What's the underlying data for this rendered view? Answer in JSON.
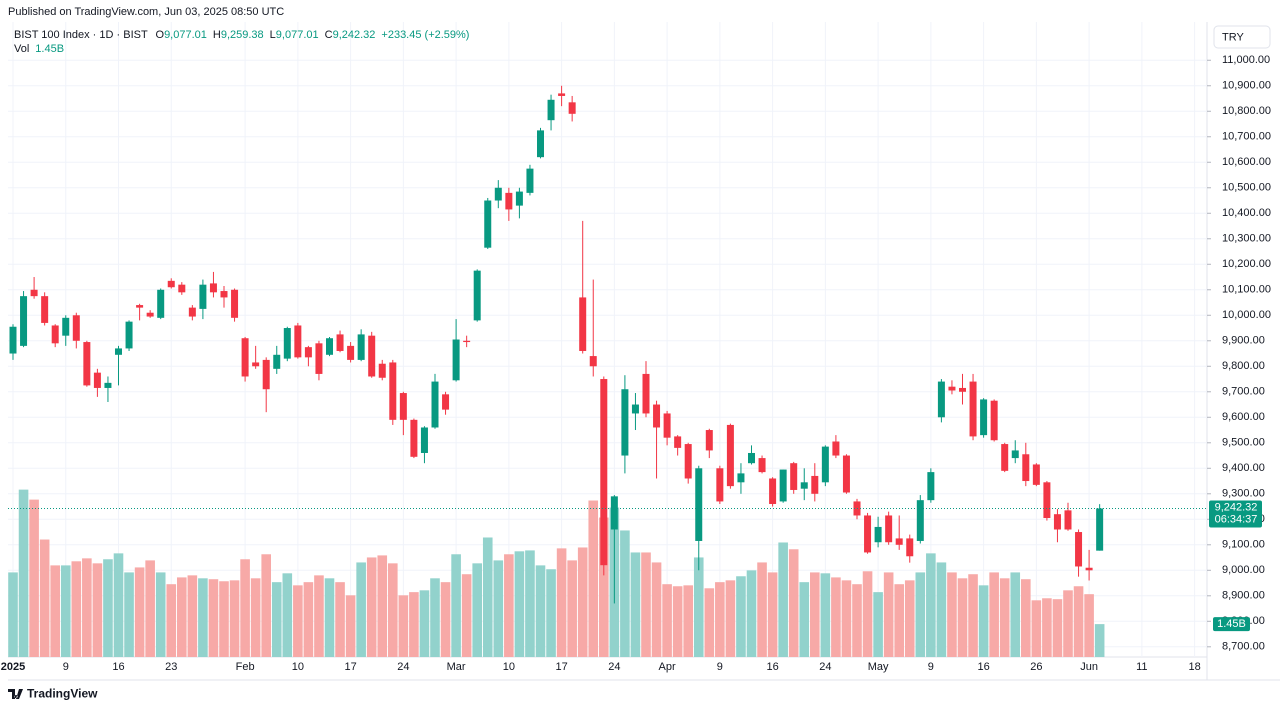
{
  "header": {
    "published": "Published on TradingView.com, Jun 03, 2025 08:50 UTC",
    "footer": "TradingView"
  },
  "chart_data": {
    "type": "candlestick",
    "title": "BIST 100 Index · 1D · BIST",
    "legend_items": [
      {
        "key": "O",
        "value": "9,077.01"
      },
      {
        "key": "H",
        "value": "9,259.38"
      },
      {
        "key": "L",
        "value": "9,077.01"
      },
      {
        "key": "C",
        "value": "9,242.32"
      }
    ],
    "change": "+233.45 (+2.59%)",
    "volume_title": "Vol",
    "volume_legend": "1.45B",
    "currency": "TRY",
    "last_price_label": "9,242.32",
    "countdown": "06:34:37",
    "last_volume_label": "1.45B",
    "categories": [
      "2025",
      null,
      null,
      null,
      null,
      "9",
      null,
      null,
      null,
      null,
      "16",
      null,
      null,
      null,
      null,
      "23",
      null,
      null,
      null,
      null,
      null,
      null,
      "Feb",
      null,
      null,
      null,
      null,
      "10",
      null,
      null,
      null,
      null,
      "17",
      null,
      null,
      null,
      null,
      "24",
      null,
      null,
      null,
      null,
      "Mar",
      null,
      null,
      null,
      null,
      "10",
      null,
      null,
      null,
      null,
      "17",
      null,
      null,
      null,
      null,
      "24",
      null,
      null,
      null,
      null,
      "Apr",
      null,
      null,
      null,
      null,
      "9",
      null,
      null,
      null,
      null,
      "16",
      null,
      null,
      null,
      null,
      "24",
      null,
      null,
      null,
      null,
      "May",
      null,
      null,
      null,
      null,
      "9",
      null,
      null,
      null,
      null,
      "16",
      null,
      null,
      null,
      null,
      "26",
      null,
      null,
      null,
      null,
      "Jun",
      null,
      null,
      null,
      null,
      "11",
      null,
      null,
      null,
      null,
      "18"
    ],
    "open": [
      9850,
      9880,
      10100,
      10075,
      9960,
      9920,
      10000,
      9895,
      9775,
      9715,
      9845,
      9870,
      10040,
      10010,
      9990,
      10135,
      10120,
      10030,
      10025,
      10125,
      10095,
      10100,
      9910,
      9815,
      9825,
      9790,
      9830,
      9960,
      9875,
      9890,
      9845,
      9925,
      9880,
      9825,
      9920,
      9810,
      9815,
      9695,
      9590,
      9460,
      9560,
      9690,
      9745,
      9900,
      9980,
      10265,
      10450,
      10480,
      10430,
      10480,
      10620,
      10765,
      10870,
      10835,
      10070,
      9840,
      9750,
      9160,
      9450,
      9615,
      9770,
      9650,
      9615,
      9525,
      9495,
      9115,
      9550,
      9400,
      9570,
      9345,
      9420,
      9440,
      9360,
      9270,
      9420,
      9320,
      9370,
      9345,
      9505,
      9450,
      9270,
      9215,
      9110,
      9215,
      9125,
      9125,
      9115,
      9275,
      9600,
      9720,
      9715,
      9740,
      9530,
      9665,
      9495,
      9440,
      9455,
      9415,
      9345,
      9220,
      9235,
      9150,
      9010,
      9077.01,
      null,
      null,
      null,
      null,
      null,
      null,
      null,
      null,
      null
    ],
    "high": [
      9965,
      10095,
      10150,
      10090,
      9965,
      10000,
      10010,
      9900,
      9790,
      9760,
      9880,
      9980,
      10045,
      10020,
      10105,
      10145,
      10130,
      10040,
      10140,
      10170,
      10115,
      10105,
      9915,
      9880,
      9835,
      9880,
      9955,
      9970,
      9880,
      9900,
      9915,
      9940,
      9895,
      9945,
      9935,
      9825,
      9825,
      9700,
      9595,
      9565,
      9770,
      9700,
      9985,
      9920,
      10180,
      10460,
      10530,
      10500,
      10500,
      10590,
      10735,
      10865,
      10900,
      10860,
      10370,
      10140,
      9760,
      9295,
      9765,
      9695,
      9820,
      9665,
      9625,
      9530,
      9500,
      9410,
      9555,
      9410,
      9575,
      9420,
      9490,
      9450,
      9365,
      9395,
      9425,
      9400,
      9420,
      9490,
      9530,
      9455,
      9280,
      9225,
      9210,
      9230,
      9215,
      9140,
      9295,
      9400,
      9750,
      9745,
      9770,
      9770,
      9675,
      9670,
      9500,
      9510,
      9500,
      9420,
      9350,
      9240,
      9265,
      9160,
      9080,
      9259.38,
      null,
      null,
      null,
      null,
      null,
      null,
      null,
      null,
      null
    ],
    "low": [
      9825,
      9875,
      10065,
      9960,
      9875,
      9880,
      9870,
      9720,
      9680,
      9660,
      9725,
      9860,
      9980,
      9990,
      9985,
      10105,
      10080,
      9980,
      9985,
      10070,
      10030,
      9975,
      9740,
      9790,
      9620,
      9770,
      9820,
      9830,
      9800,
      9745,
      9840,
      9855,
      9815,
      9820,
      9755,
      9745,
      9570,
      9530,
      9440,
      9420,
      9555,
      9610,
      9740,
      9875,
      9975,
      10260,
      10420,
      10370,
      10380,
      10470,
      10615,
      10725,
      10820,
      10760,
      9850,
      9760,
      8980,
      8870,
      9380,
      9550,
      9600,
      9360,
      9490,
      9450,
      9340,
      9000,
      9440,
      9260,
      9320,
      9300,
      9415,
      9380,
      9250,
      9265,
      9300,
      9275,
      9270,
      9330,
      9440,
      9300,
      9200,
      9065,
      9090,
      9100,
      9080,
      9030,
      9105,
      9265,
      9580,
      9690,
      9650,
      9510,
      9520,
      9505,
      9385,
      9420,
      9330,
      9330,
      9195,
      9110,
      9155,
      8975,
      8960,
      9077.01,
      null,
      null,
      null,
      null,
      null,
      null,
      null,
      null,
      null
    ],
    "close": [
      9955,
      10075,
      10075,
      9970,
      9890,
      9990,
      9900,
      9725,
      9715,
      9735,
      9870,
      9975,
      10030,
      9995,
      10100,
      10110,
      10090,
      9995,
      10120,
      10090,
      10070,
      9990,
      9760,
      9800,
      9710,
      9845,
      9950,
      9835,
      9835,
      9770,
      9910,
      9860,
      9825,
      9925,
      9760,
      9755,
      9590,
      9590,
      9445,
      9560,
      9740,
      9630,
      9905,
      9895,
      10175,
      10450,
      10500,
      10415,
      10485,
      10575,
      10725,
      10845,
      10860,
      10790,
      9860,
      9800,
      9020,
      9290,
      9710,
      9650,
      9615,
      9560,
      9520,
      9480,
      9360,
      9400,
      9470,
      9270,
      9330,
      9380,
      9460,
      9385,
      9260,
      9395,
      9315,
      9345,
      9300,
      9485,
      9450,
      9305,
      9215,
      9070,
      9170,
      9110,
      9100,
      9055,
      9275,
      9385,
      9740,
      9705,
      9700,
      9525,
      9670,
      9510,
      9390,
      9470,
      9350,
      9335,
      9205,
      9160,
      9160,
      9015,
      9000,
      9242.32,
      null,
      null,
      null,
      null,
      null,
      null,
      null,
      null,
      null
    ],
    "volume": [
      3.73,
      7.38,
      6.94,
      5.18,
      4.04,
      4.04,
      4.22,
      4.35,
      4.13,
      4.31,
      4.57,
      3.73,
      3.95,
      4.26,
      3.73,
      3.21,
      3.51,
      3.6,
      3.47,
      3.43,
      3.34,
      3.38,
      4.31,
      3.47,
      4.53,
      3.3,
      3.69,
      3.16,
      3.3,
      3.6,
      3.47,
      3.3,
      2.72,
      4.17,
      4.39,
      4.48,
      4.13,
      2.72,
      2.86,
      2.94,
      3.47,
      3.3,
      4.53,
      3.65,
      4.13,
      5.27,
      4.26,
      4.53,
      4.66,
      4.7,
      4.04,
      3.87,
      4.79,
      4.26,
      4.83,
      6.9,
      6.15,
      6.59,
      5.58,
      4.61,
      4.61,
      4.17,
      3.21,
      3.12,
      3.16,
      4.39,
      3.03,
      3.3,
      3.38,
      3.56,
      3.82,
      4.17,
      3.73,
      5.05,
      4.75,
      3.3,
      3.73,
      3.69,
      3.51,
      3.38,
      3.21,
      3.78,
      2.86,
      3.73,
      3.21,
      3.38,
      3.73,
      4.57,
      4.17,
      3.73,
      3.47,
      3.65,
      3.16,
      3.73,
      3.47,
      3.73,
      3.43,
      2.5,
      2.59,
      2.55,
      2.94,
      3.12,
      2.77,
      1.45,
      null,
      null,
      null,
      null,
      null,
      null,
      null,
      null,
      null
    ],
    "volume_axis": "y2",
    "ylim": [
      8660,
      11150
    ],
    "y2lim": [
      0,
      28
    ],
    "yticks": [
      {
        "value": 8700,
        "label": "8,700.00"
      },
      {
        "value": 8800,
        "label": "8,800.00"
      },
      {
        "value": 8900,
        "label": "8,900.00"
      },
      {
        "value": 9000,
        "label": "9,000.00"
      },
      {
        "value": 9100,
        "label": "9,100.00"
      },
      {
        "value": 9200,
        "label": "9,200.00"
      },
      {
        "value": 9300,
        "label": "9,300.00"
      },
      {
        "value": 9400,
        "label": "9,400.00"
      },
      {
        "value": 9500,
        "label": "9,500.00"
      },
      {
        "value": 9600,
        "label": "9,600.00"
      },
      {
        "value": 9700,
        "label": "9,700.00"
      },
      {
        "value": 9800,
        "label": "9,800.00"
      },
      {
        "value": 9900,
        "label": "9,900.00"
      },
      {
        "value": 10000,
        "label": "10,000.00"
      },
      {
        "value": 10100,
        "label": "10,100.00"
      },
      {
        "value": 10200,
        "label": "10,200.00"
      },
      {
        "value": 10300,
        "label": "10,300.00"
      },
      {
        "value": 10400,
        "label": "10,400.00"
      },
      {
        "value": 10500,
        "label": "10,500.00"
      },
      {
        "value": 10600,
        "label": "10,600.00"
      },
      {
        "value": 10700,
        "label": "10,700.00"
      },
      {
        "value": 10800,
        "label": "10,800.00"
      },
      {
        "value": 10900,
        "label": "10,900.00"
      },
      {
        "value": 11000,
        "label": "11,000.00"
      }
    ],
    "grid": true,
    "up_color": "#089981",
    "down_color": "#f23645",
    "volume_up_color": "#92d2cc",
    "volume_down_color": "#f7a9a7"
  }
}
